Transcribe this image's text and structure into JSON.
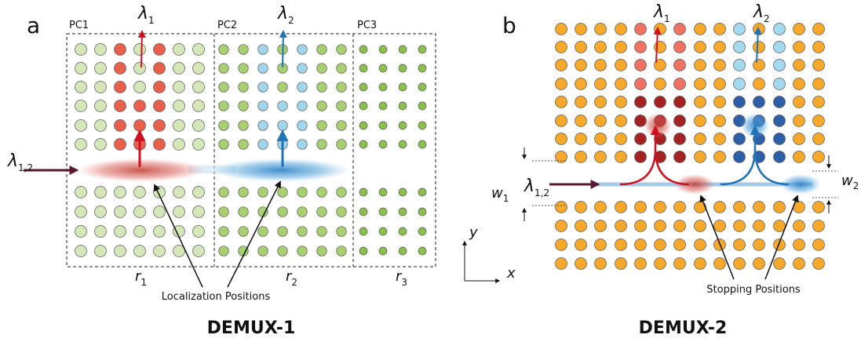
{
  "panel_a": {
    "label": "a",
    "crystals": [
      "PC1",
      "PC2",
      "PC3"
    ],
    "output_1": {
      "symbol": "λ",
      "sub": "1"
    },
    "output_2": {
      "symbol": "λ",
      "sub": "2"
    },
    "input": {
      "symbol": "λ",
      "sub": "1,2"
    },
    "radii": [
      {
        "symbol": "r",
        "sub": "1"
      },
      {
        "symbol": "r",
        "sub": "2"
      },
      {
        "symbol": "r",
        "sub": "3"
      }
    ],
    "annotation": "Localization Positions",
    "caption": "DEMUX-1"
  },
  "panel_b": {
    "label": "b",
    "output_1": {
      "symbol": "λ",
      "sub": "1"
    },
    "output_2": {
      "symbol": "λ",
      "sub": "2"
    },
    "input": {
      "symbol": "λ",
      "sub": "1,2"
    },
    "width_1": {
      "symbol": "w",
      "sub": "1"
    },
    "width_2": {
      "symbol": "w",
      "sub": "2"
    },
    "annotation": "Stopping Positions",
    "caption": "DEMUX-2"
  },
  "axes": {
    "y": "y",
    "x": "x"
  }
}
